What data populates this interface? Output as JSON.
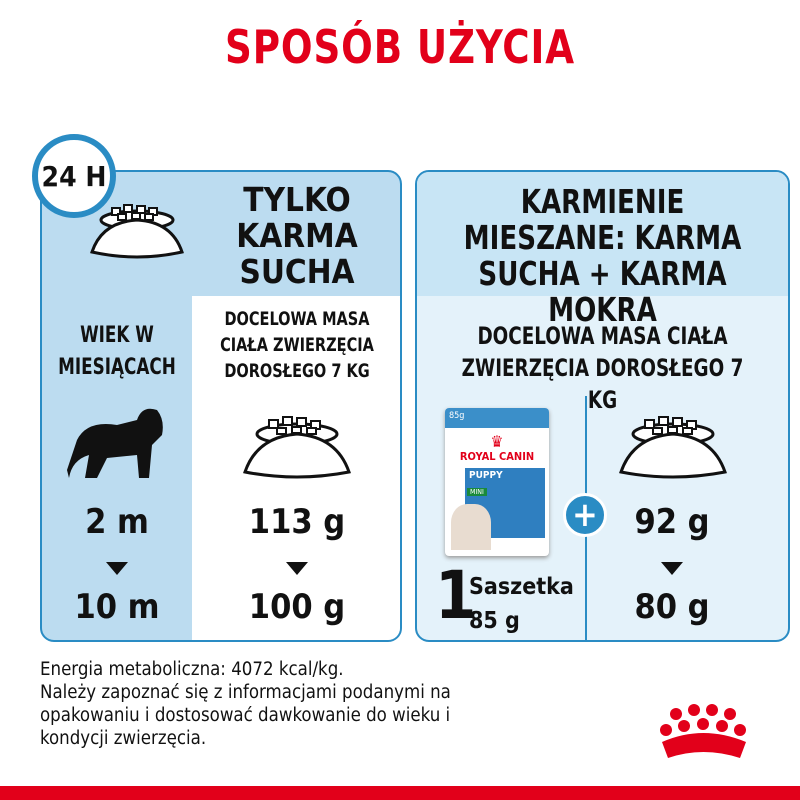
{
  "title": "SPOSÓB UŻYCIA",
  "left": {
    "badge": "24 H",
    "heading": "TYLKO KARMA SUCHA",
    "age_label": "WIEK W MIESIĄCACH",
    "weight_label": "DOCELOWA MASA CIAŁA ZWIERZĘCIA DOROSŁEGO 7 KG",
    "age_from": "2 m",
    "age_to": "10 m",
    "dose_from": "113 g",
    "dose_to": "100 g"
  },
  "right": {
    "heading": "KARMIENIE MIESZANE: KARMA SUCHA + KARMA MOKRA",
    "weight_label": "DOCELOWA MASA CIAŁA ZWIERZĘCIA DOROSŁEGO 7 KG",
    "pouch": {
      "weight": "85g",
      "brand": "ROYAL CANIN",
      "product": "PUPPY",
      "variant": "MINI"
    },
    "count": "1",
    "unit": "Saszetka",
    "unit_weight": "85 g",
    "plus": "+",
    "dose_from": "92 g",
    "dose_to": "80 g"
  },
  "footer": {
    "line1": "Energia metaboliczna: 4072 kcal/kg.",
    "line2": "Należy zapoznać się z informacjami podanymi na",
    "line3": "opakowaniu i dostosować dawkowanie do wieku i",
    "line4": "kondycji zwierzęcia."
  },
  "colors": {
    "red": "#e2001a",
    "blue": "#2a8cc4",
    "panel": "#bcdcf0"
  }
}
